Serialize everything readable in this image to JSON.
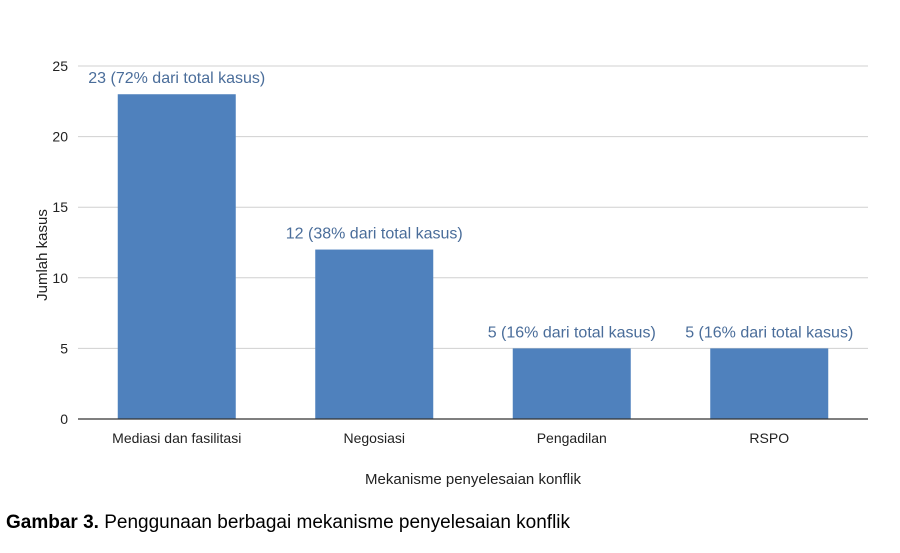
{
  "chart_data": {
    "type": "bar",
    "categories": [
      "Mediasi dan fasilitasi",
      "Negosiasi",
      "Pengadilan",
      "RSPO"
    ],
    "values": [
      23,
      12,
      5,
      5
    ],
    "data_labels": [
      "23 (72% dari total kasus)",
      "12 (38% dari total kasus)",
      "5 (16% dari total kasus)",
      "5 (16% dari total kasus)"
    ],
    "xlabel": "Mekanisme penyelesaian konflik",
    "ylabel": "Jumlah kasus",
    "ylim": [
      0,
      25
    ],
    "yticks": [
      0,
      5,
      10,
      15,
      20,
      25
    ],
    "grid": true,
    "bar_color": "#4f81bd",
    "label_color": "#4a6d9a"
  },
  "caption": {
    "prefix": "Gambar 3.",
    "text": " Penggunaan berbagai mekanisme penyelesaian konflik"
  }
}
